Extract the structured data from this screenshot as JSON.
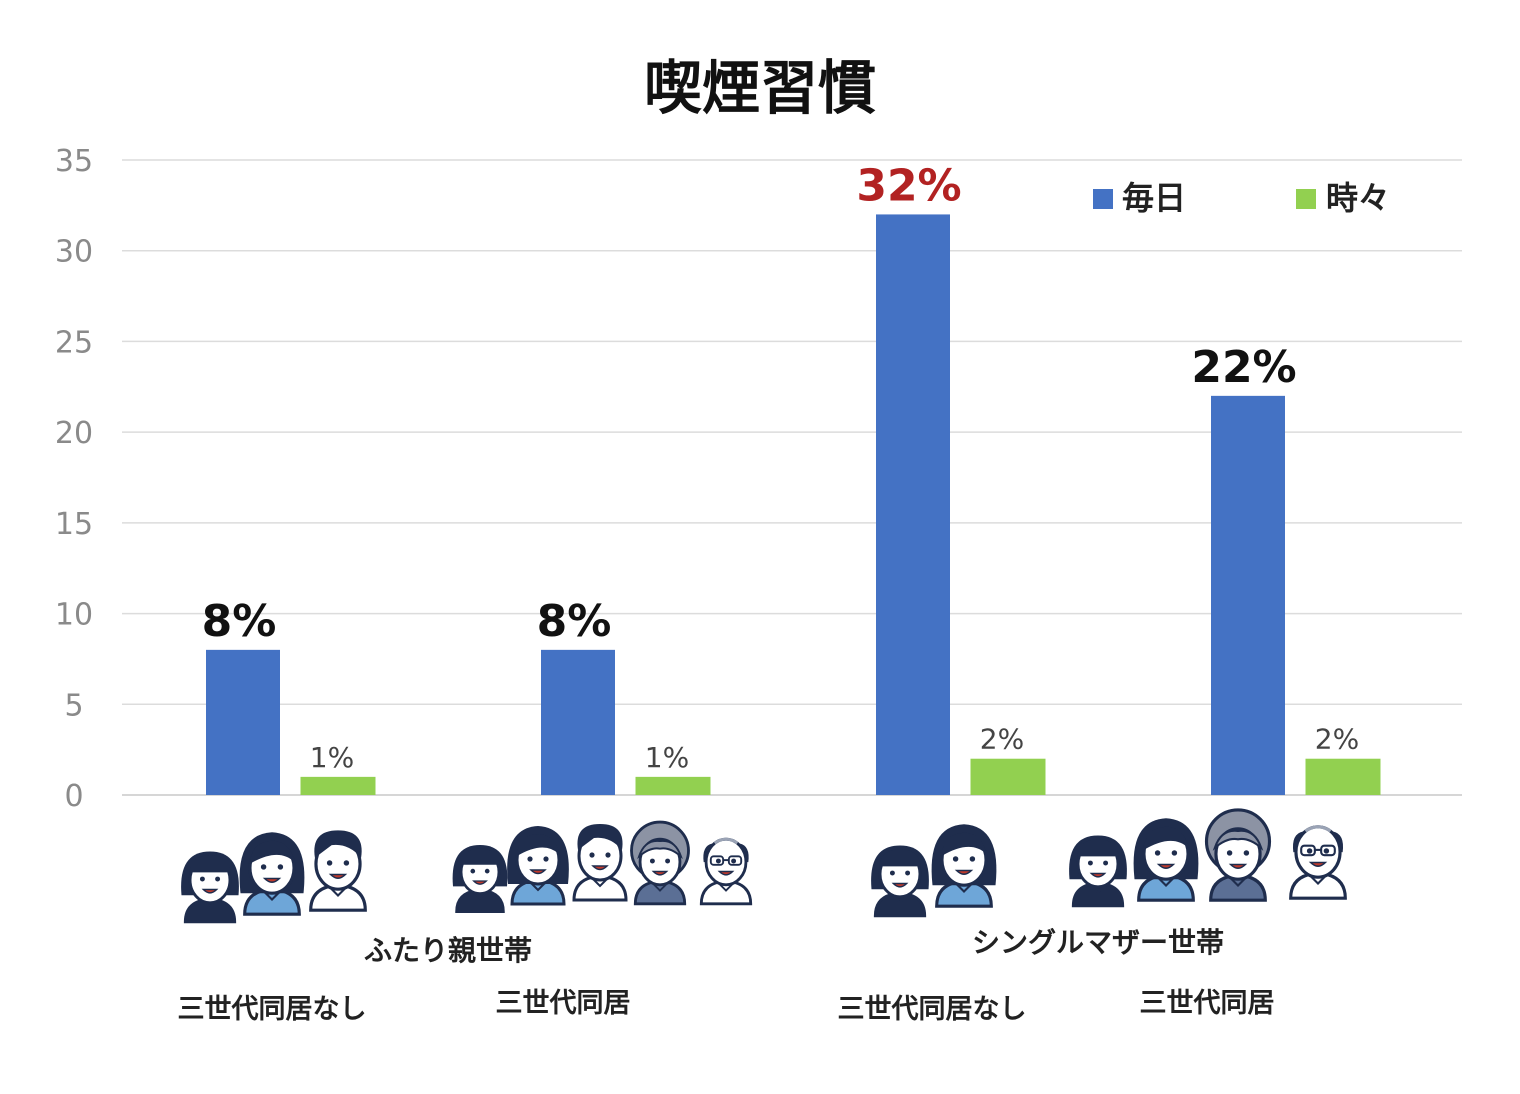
{
  "chart_data": {
    "type": "bar",
    "title": "喫煙習慣",
    "ylim": [
      0,
      35
    ],
    "yticks": [
      0,
      5,
      10,
      15,
      20,
      25,
      30,
      35
    ],
    "grid": true,
    "legend_position": "top-right",
    "groups": [
      {
        "label": "ふたり親世帯",
        "categories": [
          "三世代同居なし",
          "三世代同居"
        ]
      },
      {
        "label": "シングルマザー世帯",
        "categories": [
          "三世代同居なし",
          "三世代同居"
        ]
      }
    ],
    "categories": [
      "三世代同居なし",
      "三世代同居",
      "三世代同居なし",
      "三世代同居"
    ],
    "series": [
      {
        "name": "毎日",
        "color": "#4472c4",
        "values": [
          8,
          8,
          32,
          22
        ],
        "labels": [
          "8%",
          "8%",
          "32%",
          "22%"
        ],
        "label_colors": [
          "#111111",
          "#111111",
          "#b22222",
          "#111111"
        ]
      },
      {
        "name": "時々",
        "color": "#92d050",
        "values": [
          1,
          1,
          2,
          2
        ],
        "labels": [
          "1%",
          "1%",
          "2%",
          "2%"
        ]
      }
    ],
    "illustrations": [
      [
        "child-face-icon",
        "mother-face-icon",
        "father-face-icon"
      ],
      [
        "child-face-icon",
        "mother-face-icon",
        "father-face-icon",
        "grandmother-face-icon",
        "grandfather-face-icon"
      ],
      [
        "child-face-icon",
        "mother-face-icon"
      ],
      [
        "child-face-icon",
        "mother-face-icon",
        "grandmother-face-icon",
        "grandfather-face-icon"
      ]
    ]
  }
}
